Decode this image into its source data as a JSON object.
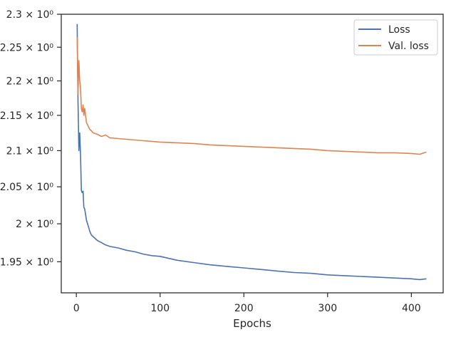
{
  "chart_data": {
    "type": "line",
    "xlabel": "Epochs",
    "ylabel": "",
    "y_scale": "log",
    "xlim": [
      -18,
      438
    ],
    "ylim": [
      1.91,
      2.3
    ],
    "grid": false,
    "legend_position": "top-right",
    "x_ticks": [
      0,
      100,
      200,
      300,
      400
    ],
    "x_tick_labels": [
      "0",
      "100",
      "200",
      "300",
      "400"
    ],
    "y_ticks": [
      1.95,
      2.0,
      2.05,
      2.1,
      2.15,
      2.2,
      2.25,
      2.3
    ],
    "y_tick_labels": [
      "1.95 × 10⁰",
      "2 × 10⁰",
      "2.05 × 10⁰",
      "2.1 × 10⁰",
      "2.15 × 10⁰",
      "2.2 × 10⁰",
      "2.25 × 10⁰",
      "2.3 × 10⁰"
    ],
    "series": [
      {
        "name": "Loss",
        "color": "#4c72b0",
        "x": [
          1,
          2,
          3,
          4,
          5,
          6,
          7,
          8,
          9,
          10,
          12,
          14,
          16,
          18,
          20,
          25,
          30,
          35,
          40,
          50,
          60,
          70,
          80,
          90,
          100,
          120,
          140,
          160,
          180,
          200,
          220,
          240,
          260,
          280,
          300,
          320,
          340,
          360,
          380,
          400,
          410,
          418
        ],
        "y": [
          2.285,
          2.17,
          2.1,
          2.125,
          2.095,
          2.045,
          2.042,
          2.044,
          2.022,
          2.02,
          2.005,
          1.998,
          1.99,
          1.985,
          1.983,
          1.978,
          1.975,
          1.972,
          1.97,
          1.968,
          1.965,
          1.963,
          1.96,
          1.958,
          1.957,
          1.952,
          1.949,
          1.946,
          1.944,
          1.942,
          1.94,
          1.938,
          1.936,
          1.935,
          1.933,
          1.932,
          1.931,
          1.93,
          1.929,
          1.928,
          1.927,
          1.928
        ]
      },
      {
        "name": "Val. loss",
        "color": "#dd8452",
        "x": [
          1,
          2,
          3,
          4,
          5,
          6,
          7,
          8,
          9,
          10,
          12,
          14,
          16,
          18,
          20,
          25,
          30,
          35,
          40,
          50,
          60,
          70,
          80,
          90,
          100,
          120,
          140,
          160,
          180,
          200,
          220,
          240,
          260,
          280,
          300,
          320,
          340,
          360,
          380,
          400,
          410,
          418
        ],
        "y": [
          2.265,
          2.18,
          2.23,
          2.2,
          2.19,
          2.16,
          2.155,
          2.165,
          2.15,
          2.16,
          2.14,
          2.135,
          2.13,
          2.128,
          2.125,
          2.123,
          2.12,
          2.122,
          2.118,
          2.117,
          2.116,
          2.115,
          2.114,
          2.113,
          2.112,
          2.111,
          2.11,
          2.108,
          2.107,
          2.106,
          2.105,
          2.104,
          2.103,
          2.102,
          2.1,
          2.099,
          2.098,
          2.097,
          2.097,
          2.096,
          2.095,
          2.098
        ]
      }
    ]
  }
}
